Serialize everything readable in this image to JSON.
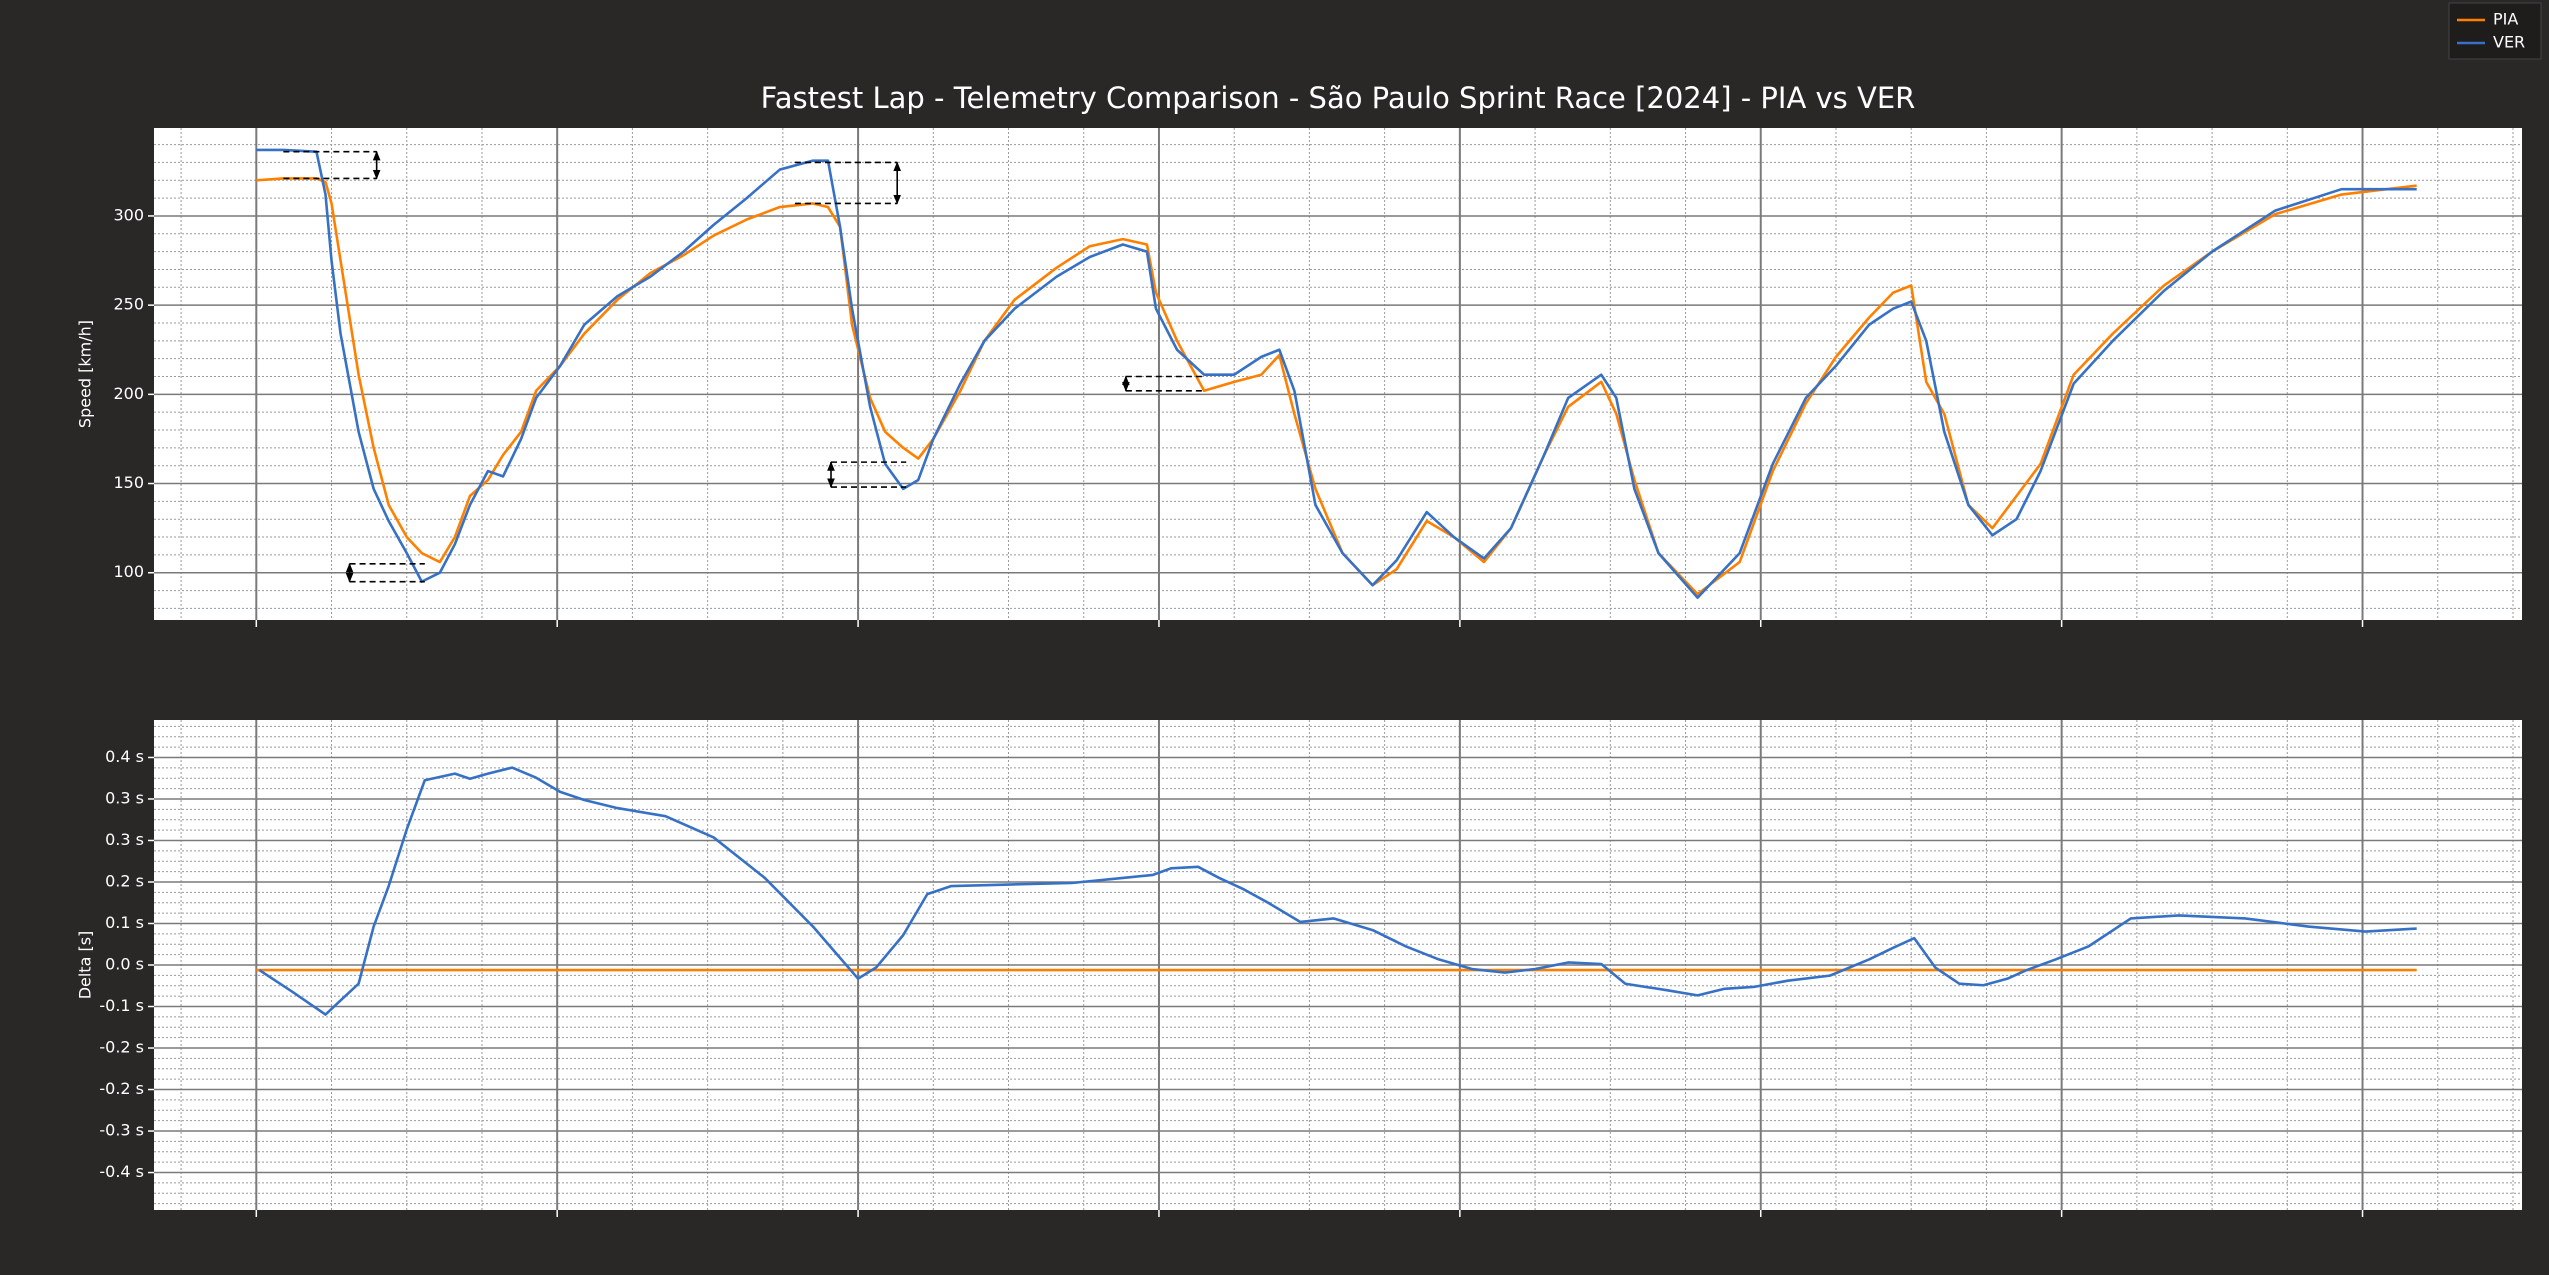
{
  "chart_data": [
    {
      "type": "line",
      "title": "Fastest Lap - Telemetry Comparison - São Paulo Sprint Race [2024] - PIA vs VER",
      "y_label": "Speed [km/h]",
      "legend": "upper right",
      "grid": true,
      "minor_divisions": [
        4,
        5
      ],
      "xlim": [
        -170,
        3765
      ],
      "xticks": [
        0,
        500,
        1000,
        1500,
        2000,
        2500,
        3000,
        3500
      ],
      "ylim": [
        73.5,
        349.3
      ],
      "yticks": [
        100,
        150,
        200,
        250,
        300
      ],
      "series": [
        {
          "name": "PIA",
          "color": "#ff8000",
          "x": [
            0,
            45,
            100,
            115,
            125,
            140,
            170,
            195,
            220,
            250,
            275,
            305,
            330,
            355,
            385,
            410,
            440,
            465,
            505,
            545,
            600,
            655,
            710,
            760,
            815,
            870,
            925,
            950,
            970,
            990,
            1020,
            1045,
            1075,
            1100,
            1125,
            1170,
            1210,
            1260,
            1330,
            1385,
            1440,
            1480,
            1495,
            1530,
            1575,
            1625,
            1670,
            1700,
            1725,
            1760,
            1805,
            1855,
            1895,
            1945,
            1990,
            2040,
            2085,
            2140,
            2180,
            2235,
            2260,
            2290,
            2330,
            2395,
            2465,
            2520,
            2575,
            2625,
            2680,
            2720,
            2750,
            2775,
            2805,
            2845,
            2885,
            2925,
            2965,
            3020,
            3085,
            3170,
            3250,
            3355,
            3465,
            3590
          ],
          "values": [
            320,
            321,
            321,
            319,
            307,
            275,
            211,
            170,
            138,
            120,
            111,
            106,
            120,
            143,
            152,
            166,
            179,
            202,
            216,
            234,
            253,
            268,
            278,
            289,
            298,
            305,
            307,
            305,
            294,
            239,
            198,
            179,
            170,
            164,
            175,
            202,
            230,
            253,
            271,
            283,
            287,
            284,
            257,
            230,
            202,
            207,
            211,
            222,
            189,
            147,
            111,
            93,
            102,
            129,
            120,
            106,
            125,
            166,
            193,
            207,
            189,
            152,
            111,
            88,
            106,
            157,
            195,
            221,
            243,
            257,
            261,
            207,
            189,
            138,
            125,
            143,
            161,
            211,
            234,
            261,
            280,
            301,
            312,
            317
          ]
        },
        {
          "name": "VER",
          "color": "#3671c6",
          "x": [
            0,
            45,
            100,
            115,
            125,
            140,
            170,
            195,
            220,
            250,
            275,
            305,
            330,
            355,
            385,
            410,
            440,
            465,
            505,
            545,
            600,
            655,
            710,
            760,
            815,
            870,
            925,
            950,
            970,
            990,
            1020,
            1045,
            1075,
            1100,
            1125,
            1170,
            1210,
            1260,
            1330,
            1385,
            1440,
            1480,
            1495,
            1530,
            1575,
            1625,
            1670,
            1700,
            1725,
            1760,
            1805,
            1855,
            1895,
            1945,
            1990,
            2040,
            2085,
            2140,
            2180,
            2235,
            2260,
            2290,
            2330,
            2395,
            2465,
            2520,
            2575,
            2625,
            2680,
            2720,
            2750,
            2775,
            2805,
            2845,
            2885,
            2925,
            2965,
            3020,
            3085,
            3170,
            3250,
            3355,
            3465,
            3590
          ],
          "values": [
            337,
            337,
            336,
            312,
            275,
            234,
            179,
            147,
            129,
            111,
            95,
            100,
            116,
            138,
            157,
            154,
            175,
            198,
            216,
            239,
            255,
            266,
            280,
            295,
            310,
            326,
            331,
            331,
            294,
            248,
            193,
            161,
            147,
            152,
            175,
            206,
            230,
            248,
            266,
            277,
            284,
            280,
            248,
            225,
            211,
            211,
            221,
            225,
            202,
            138,
            111,
            93,
            107,
            134,
            120,
            108,
            125,
            166,
            198,
            211,
            198,
            147,
            111,
            86,
            111,
            161,
            198,
            216,
            239,
            248,
            252,
            230,
            179,
            138,
            121,
            130,
            157,
            206,
            230,
            258,
            280,
            303,
            315,
            315
          ]
        }
      ],
      "brackets": [
        {
          "xlim": [
            45,
            200
          ],
          "values": [
            336,
            321
          ],
          "side": "right"
        },
        {
          "xlim": [
            155,
            280
          ],
          "values": [
            105,
            95
          ],
          "side": "left"
        },
        {
          "xlim": [
            895,
            1065
          ],
          "values": [
            330,
            307
          ],
          "side": "right"
        },
        {
          "xlim": [
            955,
            1080
          ],
          "values": [
            162,
            148
          ],
          "side": "left"
        },
        {
          "xlim": [
            1445,
            1575
          ],
          "values": [
            210,
            202
          ],
          "side": "left"
        }
      ]
    },
    {
      "type": "line",
      "y_label": "Delta [s]",
      "grid": true,
      "minor_divisions": [
        4,
        4
      ],
      "xlim": [
        -170,
        3765
      ],
      "xticks": [
        0,
        500,
        1000,
        1500,
        2000,
        2500,
        3000,
        3500
      ],
      "ylim": [
        -0.474,
        0.494
      ],
      "yticks": [
        {
          "value": 0.42,
          "label": "0.4 s"
        },
        {
          "value": 0.338,
          "label": "0.3 s"
        },
        {
          "value": 0.256,
          "label": "0.3 s"
        },
        {
          "value": 0.174,
          "label": "0.2 s"
        },
        {
          "value": 0.092,
          "label": "0.1 s"
        },
        {
          "value": 0.01,
          "label": "0.0 s"
        },
        {
          "value": -0.072,
          "label": "-0.1 s"
        },
        {
          "value": -0.154,
          "label": "-0.2 s"
        },
        {
          "value": -0.236,
          "label": "-0.2 s"
        },
        {
          "value": -0.318,
          "label": "-0.3 s"
        },
        {
          "value": -0.4,
          "label": "-0.4 s"
        }
      ],
      "series": [
        {
          "name": "PIA",
          "color": "#ff8000",
          "x": [
            0,
            3590
          ],
          "values": [
            0,
            0
          ]
        },
        {
          "name": "VER",
          "color": "#3671c6",
          "x": [
            5,
            60,
            115,
            140,
            170,
            195,
            220,
            250,
            280,
            330,
            355,
            385,
            425,
            465,
            505,
            545,
            600,
            680,
            760,
            845,
            925,
            965,
            1000,
            1030,
            1075,
            1115,
            1155,
            1250,
            1355,
            1440,
            1490,
            1520,
            1565,
            1600,
            1640,
            1680,
            1735,
            1790,
            1855,
            1910,
            1965,
            2020,
            2075,
            2125,
            2180,
            2235,
            2275,
            2345,
            2395,
            2440,
            2490,
            2545,
            2615,
            2680,
            2720,
            2755,
            2790,
            2830,
            2870,
            2910,
            2940,
            2990,
            3045,
            3115,
            3195,
            3305,
            3410,
            3505,
            3590
          ],
          "values": [
            0,
            -0.043,
            -0.088,
            -0.06,
            -0.027,
            0.086,
            0.166,
            0.278,
            0.375,
            0.388,
            0.378,
            0.388,
            0.4,
            0.38,
            0.352,
            0.336,
            0.32,
            0.304,
            0.262,
            0.182,
            0.086,
            0.031,
            -0.017,
            0.005,
            0.069,
            0.15,
            0.166,
            0.169,
            0.172,
            0.182,
            0.188,
            0.201,
            0.204,
            0.182,
            0.16,
            0.134,
            0.095,
            0.102,
            0.079,
            0.047,
            0.021,
            0.002,
            -0.005,
            0.002,
            0.015,
            0.012,
            -0.027,
            -0.04,
            -0.05,
            -0.037,
            -0.033,
            -0.021,
            -0.011,
            0.021,
            0.044,
            0.063,
            0.005,
            -0.027,
            -0.03,
            -0.017,
            -0.001,
            0.021,
            0.047,
            0.102,
            0.108,
            0.102,
            0.086,
            0.076,
            0.082
          ]
        }
      ]
    }
  ]
}
